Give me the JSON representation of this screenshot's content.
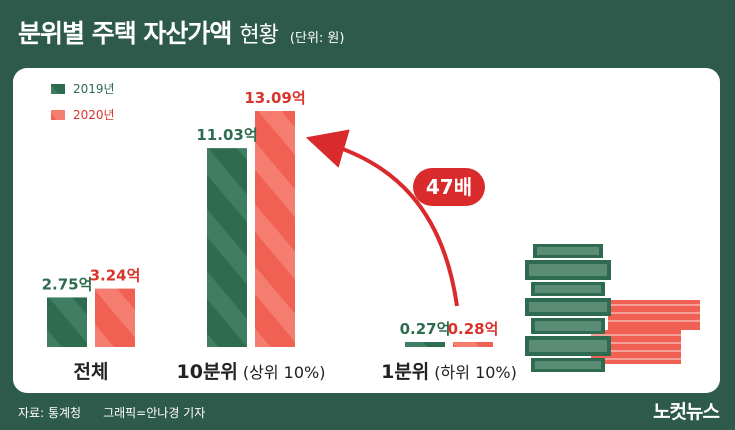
{
  "header": {
    "title": "분위별 주택 자산가액",
    "title_suffix": "현황",
    "unit": "(단위: 원)"
  },
  "chart_data": {
    "type": "bar",
    "title": "분위별 주택 자산가액 현황",
    "unit": "(단위: 원)",
    "categories": [
      {
        "main": "전체",
        "sub": ""
      },
      {
        "main": "10분위",
        "sub": "(상위 10%)"
      },
      {
        "main": "1분위",
        "sub": "(하위 10%)"
      }
    ],
    "series": [
      {
        "name": "2019년",
        "values": [
          2.75,
          11.03,
          0.27
        ],
        "labels": [
          "2.75억",
          "11.03억",
          "0.27억"
        ],
        "color": "#2e6b50"
      },
      {
        "name": "2020년",
        "values": [
          3.24,
          13.09,
          0.28
        ],
        "labels": [
          "3.24억",
          "13.09억",
          "0.28억"
        ],
        "color": "#f06154"
      }
    ],
    "annotation": "47배",
    "legend_position": "top-left",
    "grid": false
  },
  "colors": {
    "background": "#2e5a4c",
    "panel": "#ffffff",
    "green": "#2e6b50",
    "red": "#f06154",
    "red_text": "#d9342b",
    "accent_arrow": "#d92b2b"
  },
  "footer": {
    "source": "자료: 통계청",
    "credit": "그래픽=안나경 기자",
    "brand": "노컷뉴스"
  }
}
